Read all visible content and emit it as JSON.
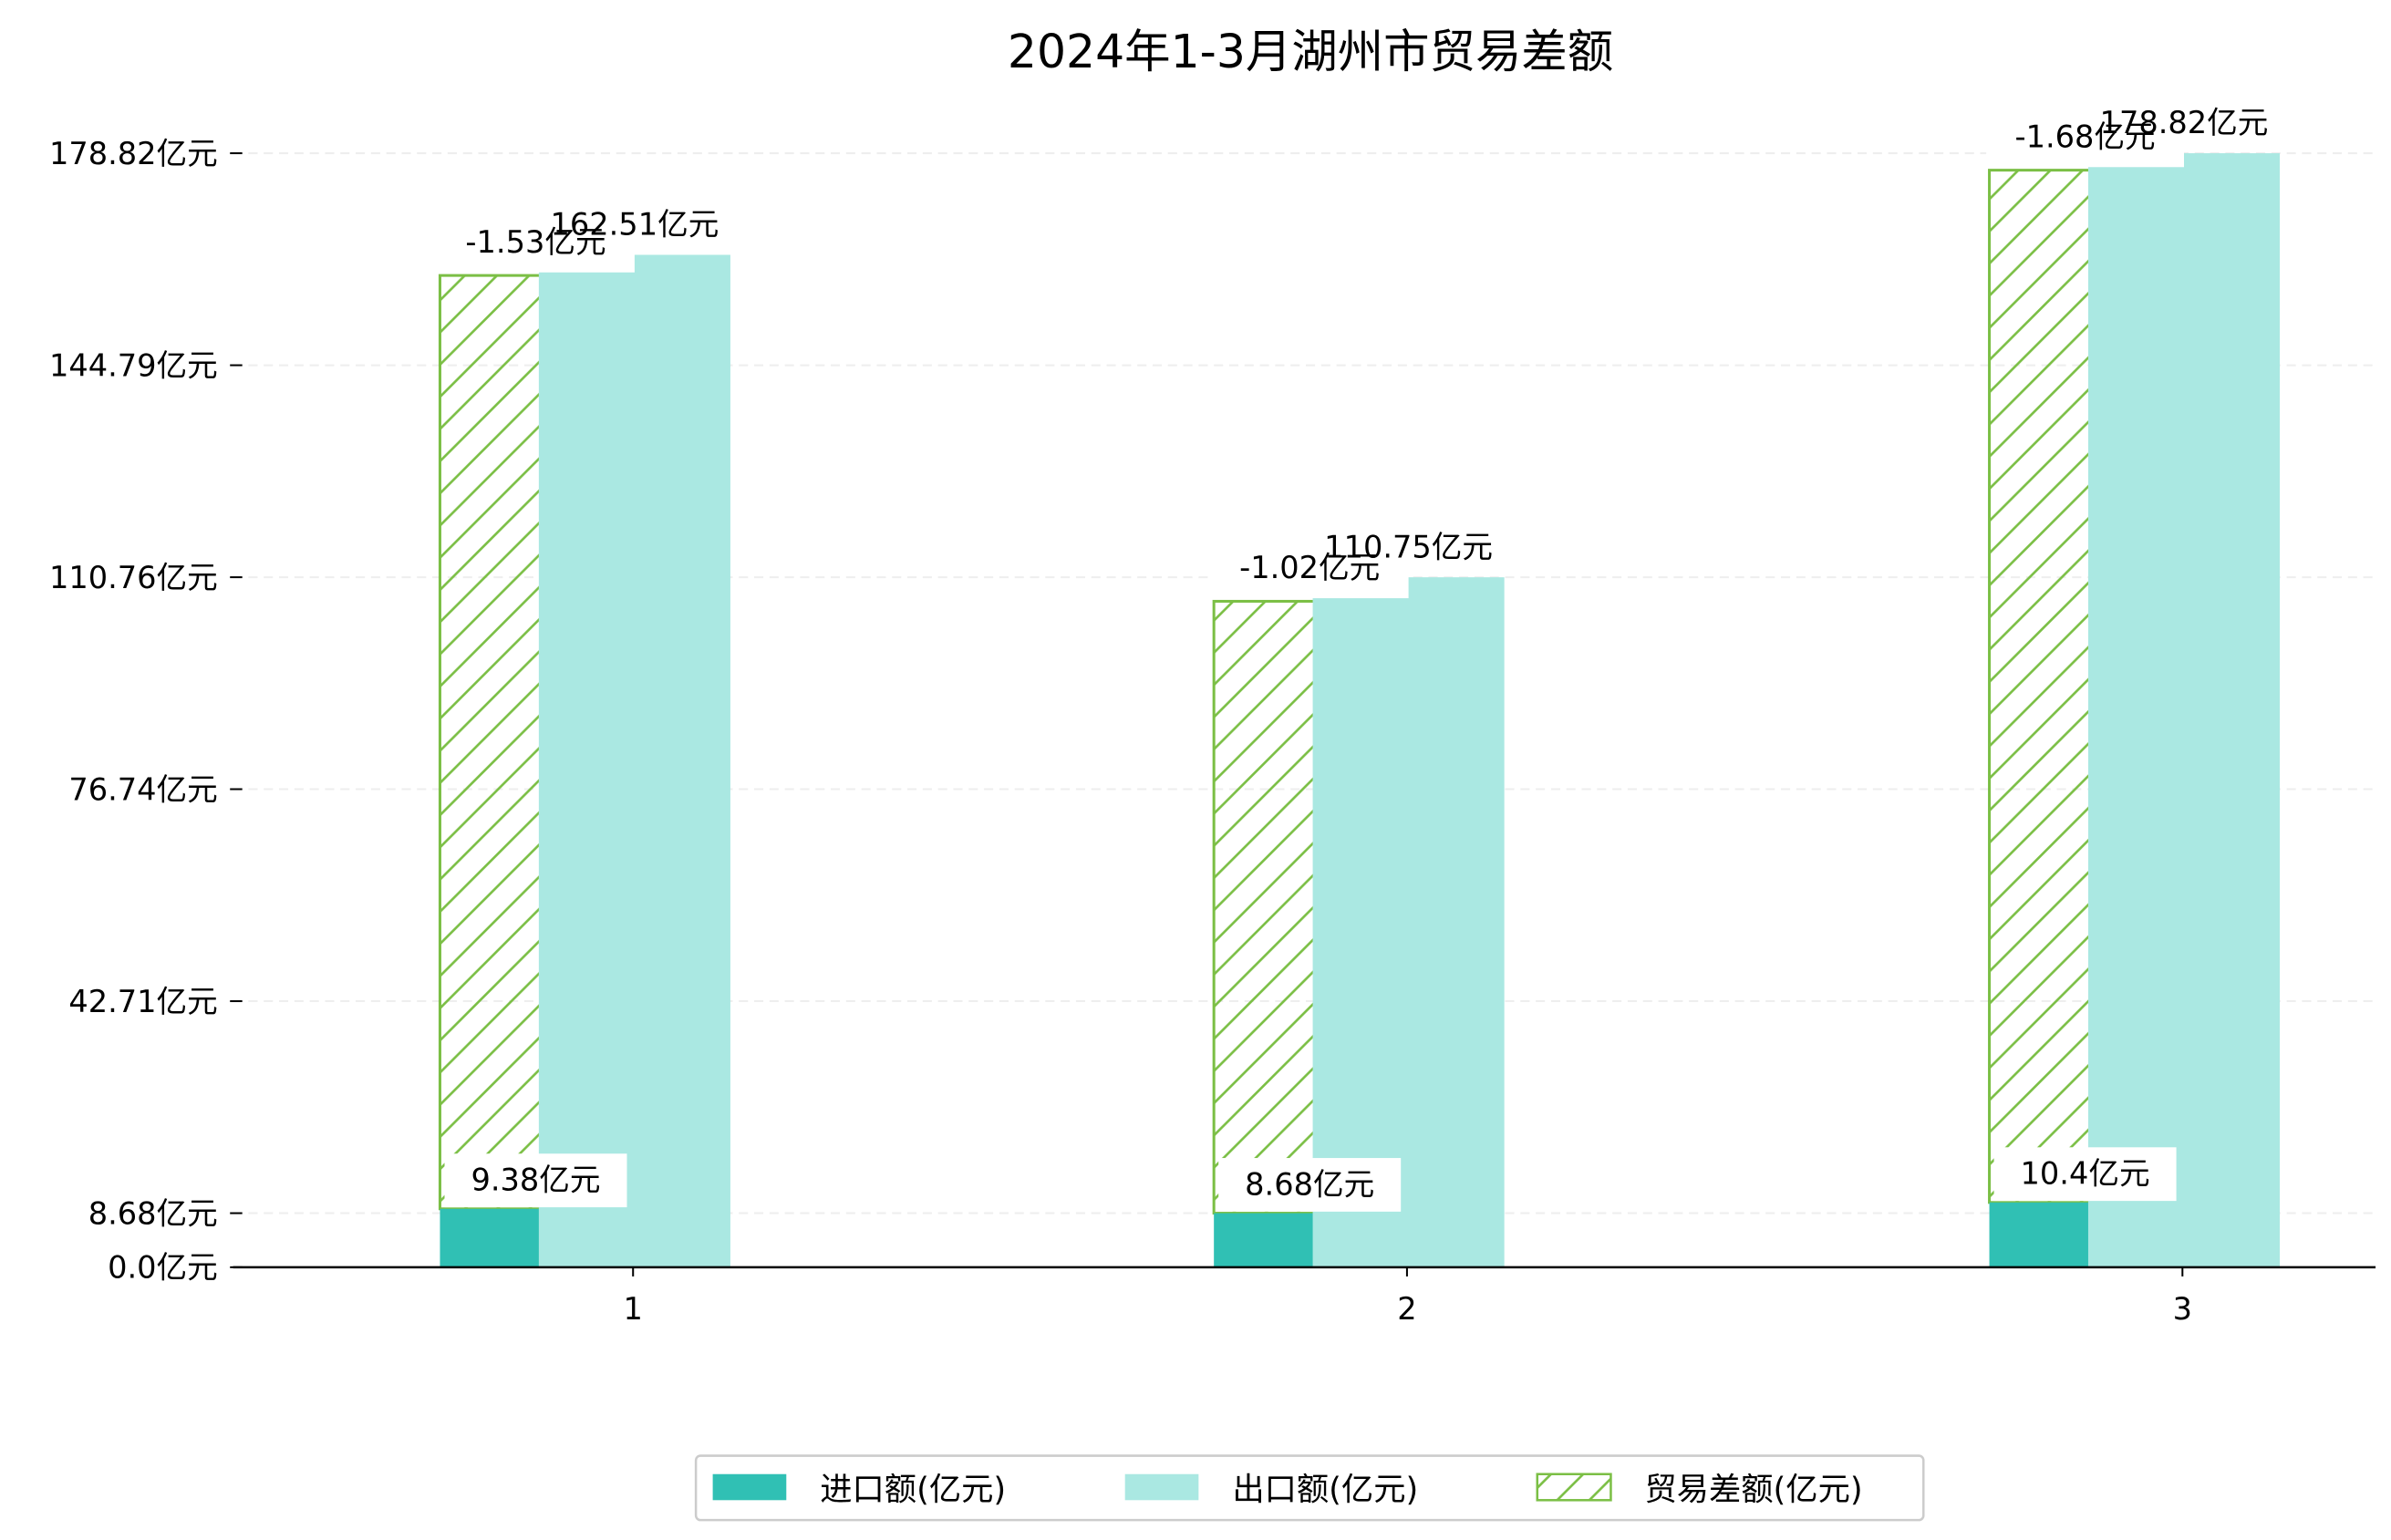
{
  "chart_data": {
    "type": "bar",
    "title": "2024年1-3月湖州市贸易差额",
    "xlabel": "",
    "ylabel": "",
    "categories": [
      "1",
      "2",
      "3"
    ],
    "ylim": [
      0,
      178.82
    ],
    "yticks": [
      0.0,
      8.68,
      42.71,
      76.74,
      110.76,
      144.79,
      178.82
    ],
    "ytick_labels": [
      "0.0亿元",
      "8.68亿元",
      "42.71亿元",
      "76.74亿元",
      "110.76亿元",
      "144.79亿元",
      "178.82亿元"
    ],
    "grid": "horizontal dashed",
    "legend_position": "bottom-center",
    "series": [
      {
        "name": "进口额(亿元)",
        "values": [
          9.38,
          8.68,
          10.4
        ],
        "labels": [
          "9.38亿元",
          "8.68亿元",
          "10.4亿元"
        ],
        "color": "#30c0b4",
        "style": "solid"
      },
      {
        "name": "出口额(亿元)",
        "values": [
          162.51,
          110.75,
          178.82
        ],
        "labels": [
          "162.51亿元",
          "110.75亿元",
          "178.82亿元"
        ],
        "color": "#aae8e2",
        "style": "solid"
      },
      {
        "name": "贸易差额(亿元)",
        "values": [
          -1.53,
          -1.02,
          -1.68
        ],
        "labels": [
          "-1.53亿元",
          "-1.02亿元",
          "-1.68亿元"
        ],
        "bar_top": [
          159.2,
          106.9,
          176.1
        ],
        "color": "#7bbf45",
        "style": "hatched"
      }
    ]
  }
}
